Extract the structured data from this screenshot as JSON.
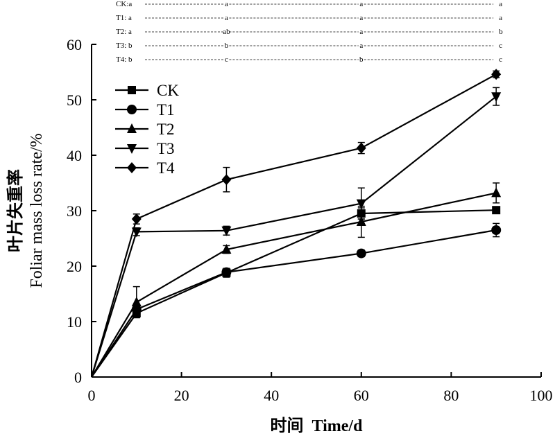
{
  "chart_data": {
    "type": "line",
    "xlabel": "时间  Time/d",
    "ylabel_cn": "叶片失重率",
    "ylabel_en": "Foliar mass loss rate/%",
    "xlim": [
      0,
      100
    ],
    "ylim": [
      0,
      60
    ],
    "xticks": [
      "0",
      "20",
      "40",
      "60",
      "80",
      "100"
    ],
    "yticks": [
      "0",
      "10",
      "20",
      "30",
      "40",
      "50",
      "60"
    ],
    "x": [
      0,
      10,
      30,
      60,
      90
    ],
    "legend_position": "upper-left",
    "series": [
      {
        "name": "CK",
        "marker": "square",
        "values": [
          0,
          11.5,
          18.8,
          29.5,
          30.1
        ],
        "errors": [
          0,
          0.8,
          0.8,
          1.0,
          0.6
        ]
      },
      {
        "name": "T1",
        "marker": "circle",
        "values": [
          0,
          12.2,
          18.9,
          22.3,
          26.5
        ],
        "errors": [
          0,
          0.7,
          0.6,
          0.6,
          1.2
        ]
      },
      {
        "name": "T2",
        "marker": "triangle-up",
        "values": [
          0,
          13.5,
          23.0,
          28.0,
          33.2
        ],
        "errors": [
          0,
          2.8,
          0.7,
          2.8,
          1.8
        ]
      },
      {
        "name": "T3",
        "marker": "triangle-down",
        "values": [
          0,
          26.2,
          26.4,
          31.3,
          50.6
        ],
        "errors": [
          0,
          0.7,
          0.8,
          2.8,
          1.6
        ]
      },
      {
        "name": "T4",
        "marker": "diamond",
        "values": [
          0,
          28.5,
          35.6,
          41.3,
          54.6
        ],
        "errors": [
          0,
          0.9,
          2.2,
          1.0,
          0.6
        ]
      }
    ],
    "significance": [
      {
        "text": "CK:a",
        "letters": [
          "a",
          "a",
          "a"
        ]
      },
      {
        "text": "T1: a",
        "letters": [
          "a",
          "a",
          "a"
        ]
      },
      {
        "text": "T2: a",
        "letters": [
          "ab",
          "a",
          "b"
        ]
      },
      {
        "text": "T3: b",
        "letters": [
          "b",
          "a",
          "c"
        ]
      },
      {
        "text": "T4: b",
        "letters": [
          "c",
          "b",
          "c"
        ]
      }
    ]
  }
}
